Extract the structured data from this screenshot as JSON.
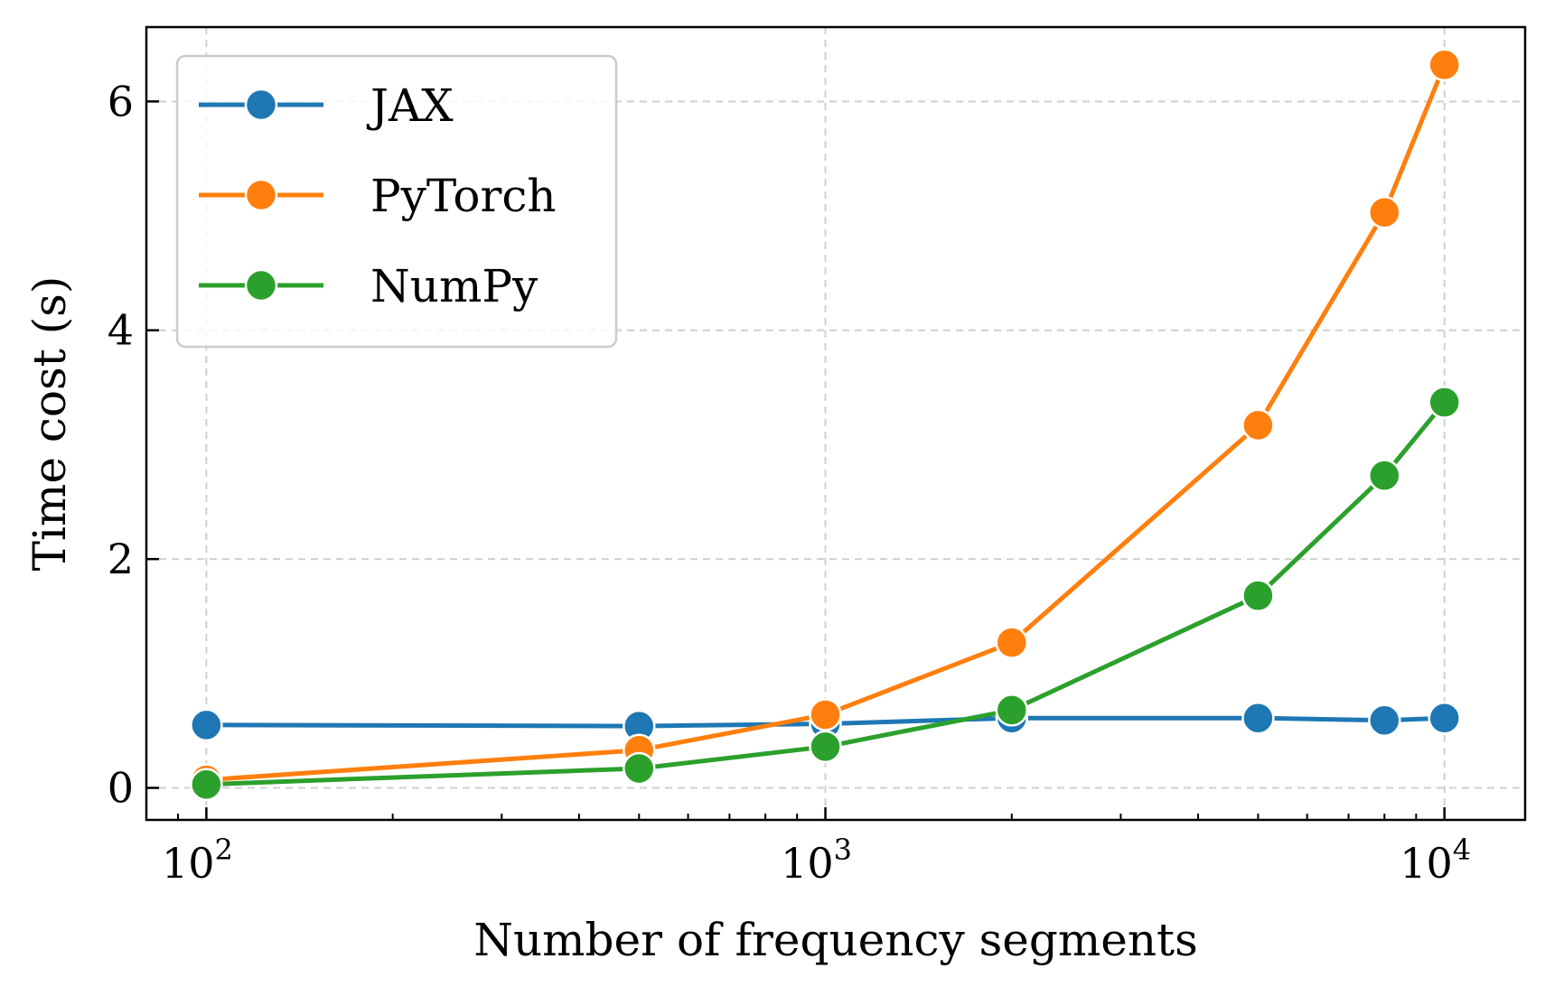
{
  "chart_data": {
    "type": "line",
    "x_scale": "log",
    "xlabel": "Number of frequency segments",
    "ylabel": "Time cost (s)",
    "xlim": [
      80,
      13500
    ],
    "ylim": [
      -0.28,
      6.65
    ],
    "x_major_ticks": [
      {
        "value": 100,
        "base": "10",
        "exp": "2"
      },
      {
        "value": 1000,
        "base": "10",
        "exp": "3"
      },
      {
        "value": 10000,
        "base": "10",
        "exp": "4"
      }
    ],
    "y_ticks": [
      {
        "value": 0,
        "label": "0"
      },
      {
        "value": 2,
        "label": "2"
      },
      {
        "value": 4,
        "label": "4"
      },
      {
        "value": 6,
        "label": "6"
      }
    ],
    "grid": true,
    "legend_position": "top-left",
    "series": [
      {
        "name": "JAX",
        "color": "#1f77b4",
        "x": [
          100,
          500,
          1000,
          2000,
          5000,
          8000,
          10000
        ],
        "y": [
          0.55,
          0.54,
          0.56,
          0.61,
          0.61,
          0.59,
          0.61
        ]
      },
      {
        "name": "PyTorch",
        "color": "#ff7f0e",
        "x": [
          100,
          500,
          1000,
          2000,
          5000,
          8000,
          10000
        ],
        "y": [
          0.07,
          0.33,
          0.64,
          1.27,
          3.17,
          5.03,
          6.32
        ]
      },
      {
        "name": "NumPy",
        "color": "#2ca02c",
        "x": [
          100,
          500,
          1000,
          2000,
          5000,
          8000,
          10000
        ],
        "y": [
          0.03,
          0.17,
          0.36,
          0.68,
          1.68,
          2.73,
          3.37
        ]
      }
    ]
  }
}
